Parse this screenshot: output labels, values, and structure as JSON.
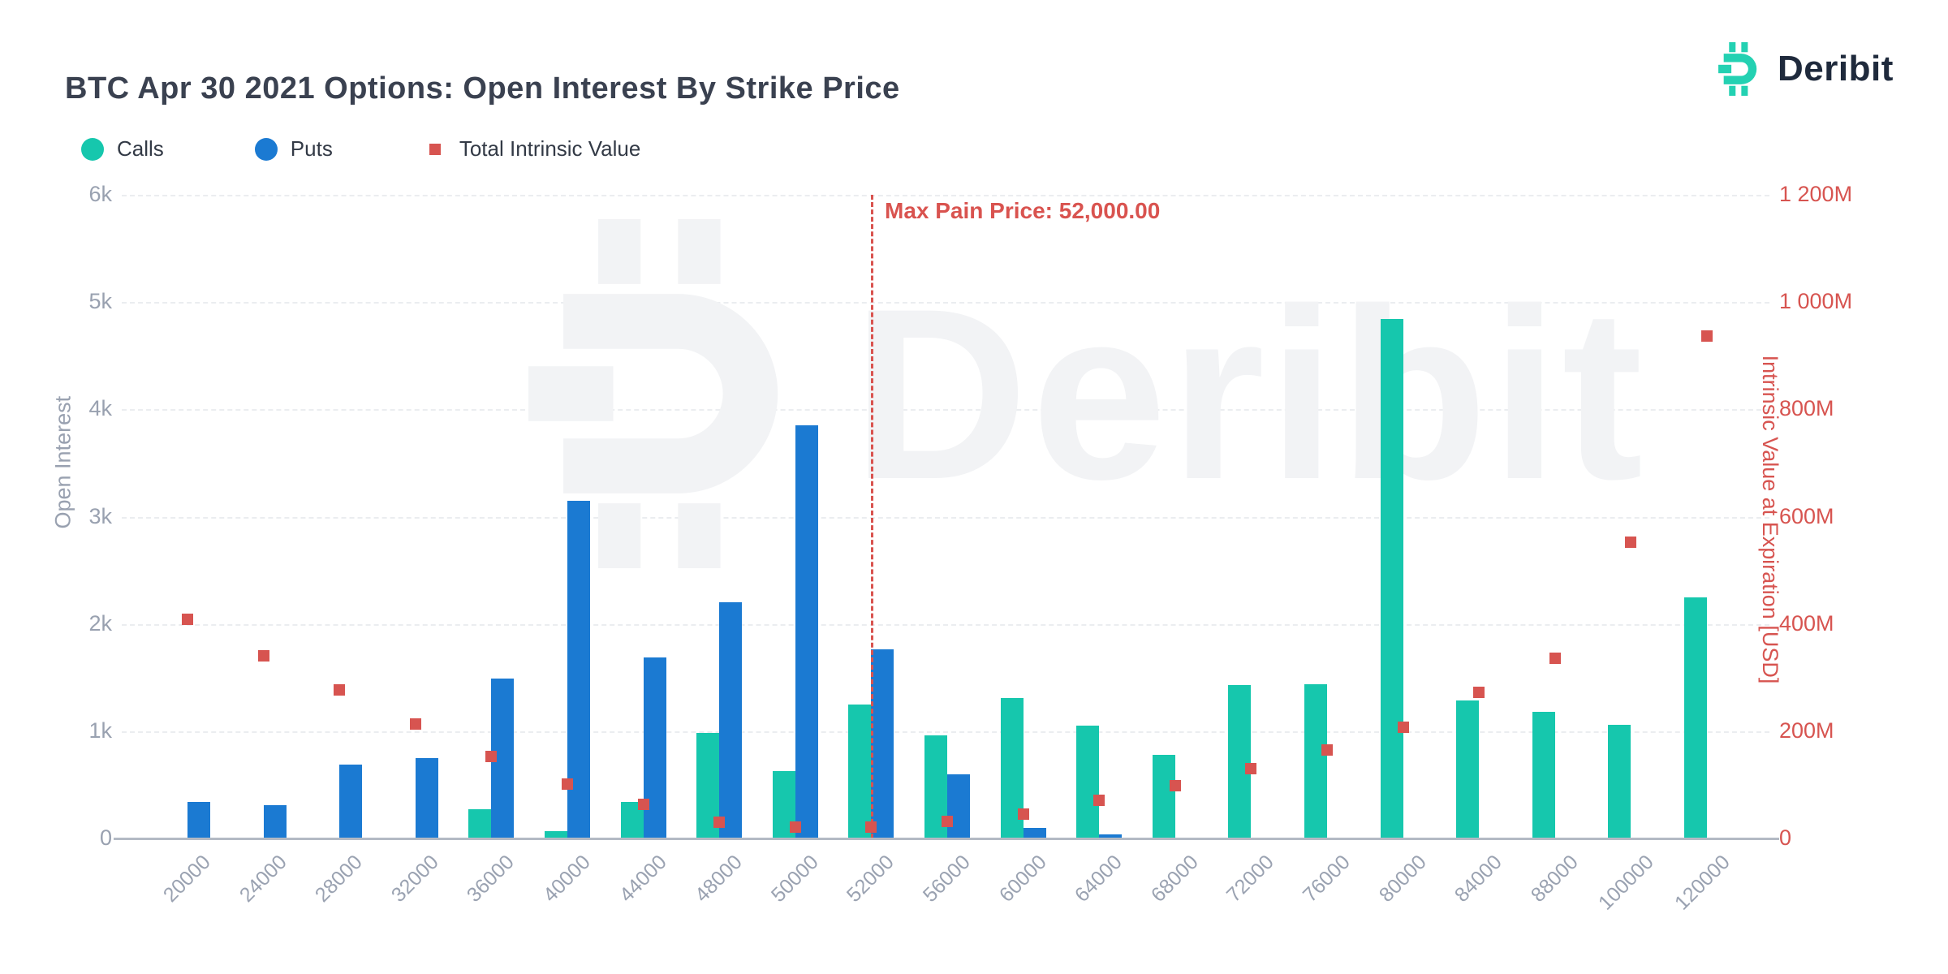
{
  "header": {
    "logo_text": "Deribit",
    "logo_teal": "#23d1b2",
    "logo_dark": "#1f2a3c"
  },
  "watermark_text": "Deribit",
  "chart_data": {
    "type": "bar",
    "title": "BTC Apr 30 2021 Options: Open Interest By Strike Price",
    "categories": [
      "20000",
      "24000",
      "28000",
      "32000",
      "36000",
      "40000",
      "44000",
      "48000",
      "50000",
      "52000",
      "56000",
      "60000",
      "64000",
      "68000",
      "72000",
      "76000",
      "80000",
      "84000",
      "88000",
      "100000",
      "120000"
    ],
    "series": [
      {
        "name": "Calls",
        "type": "bar",
        "axis": "left",
        "color": "#16c7ad",
        "values": [
          0,
          0,
          0,
          0,
          270,
          70,
          340,
          980,
          630,
          1250,
          960,
          1310,
          1050,
          780,
          1430,
          1440,
          4840,
          1290,
          1180,
          1060,
          2250
        ]
      },
      {
        "name": "Puts",
        "type": "bar",
        "axis": "left",
        "color": "#1b7ad2",
        "values": [
          340,
          310,
          690,
          750,
          1490,
          3150,
          1690,
          2200,
          3850,
          1760,
          600,
          100,
          40,
          0,
          0,
          0,
          0,
          0,
          0,
          0,
          0
        ]
      },
      {
        "name": "Total Intrinsic Value",
        "type": "scatter-square",
        "axis": "right",
        "color": "#d75450",
        "values_musd": [
          408,
          340,
          277,
          214,
          153,
          101,
          63,
          30,
          21,
          21,
          32,
          46,
          71,
          99,
          130,
          165,
          208,
          272,
          336,
          552,
          937
        ]
      }
    ],
    "left_axis": {
      "label": "Open Interest",
      "min": 0,
      "max": 6000,
      "ticks": [
        "0",
        "1k",
        "2k",
        "3k",
        "4k",
        "5k",
        "6k"
      ]
    },
    "right_axis": {
      "label": "Intrinsic Value at Expiration [USD]",
      "min": 0,
      "max": 1200,
      "ticks": [
        "0",
        "200M",
        "400M",
        "600M",
        "800M",
        "1 000M",
        "1 200M"
      ]
    },
    "annotation": {
      "label": "Max Pain Price: 52,000.00",
      "category": "52000"
    },
    "grid": "horizontal-dashed",
    "legend_position": "top-left"
  }
}
